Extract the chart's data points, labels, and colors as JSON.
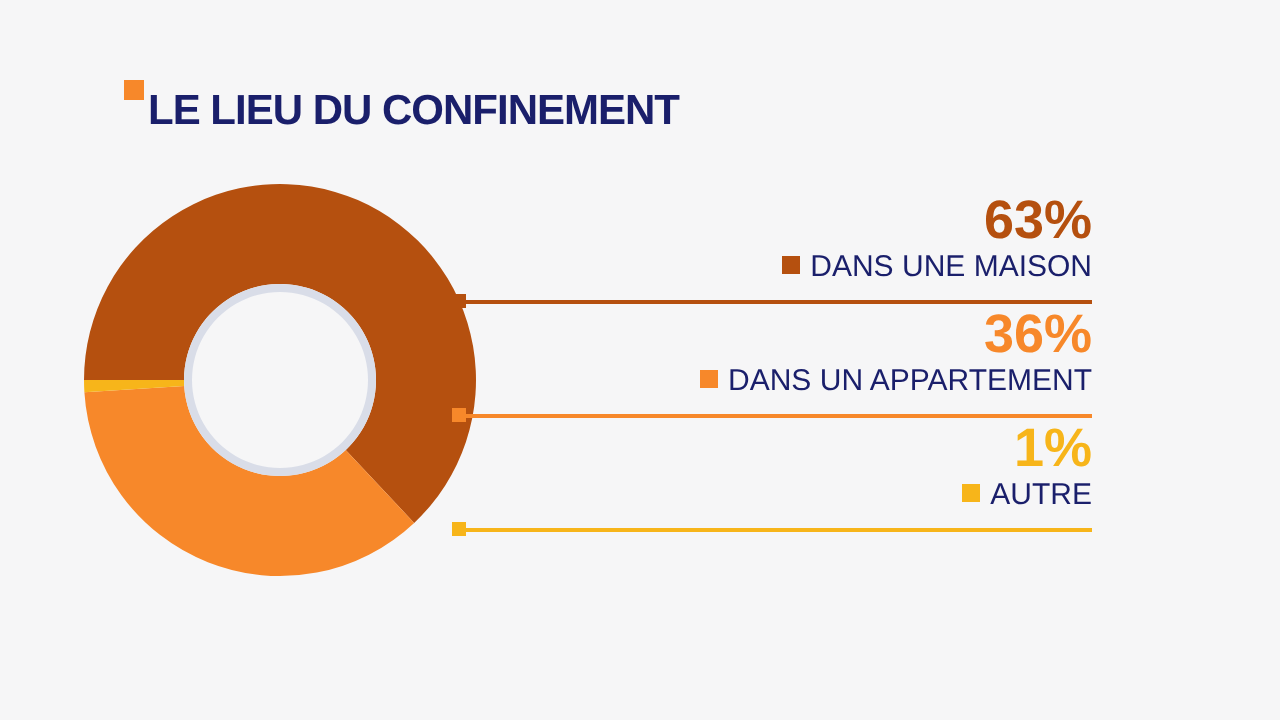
{
  "chart_data": {
    "type": "donut",
    "title": "LE LIEU DU CONFINEMENT",
    "categories": [
      "DANS UNE MAISON",
      "DANS UN APPARTEMENT",
      "AUTRE"
    ],
    "values": [
      63,
      36,
      1
    ],
    "colors": [
      "#b5500f",
      "#f7882a",
      "#f7b51a"
    ],
    "value_labels": [
      "63%",
      "36%",
      "1%"
    ],
    "legend": "right"
  }
}
